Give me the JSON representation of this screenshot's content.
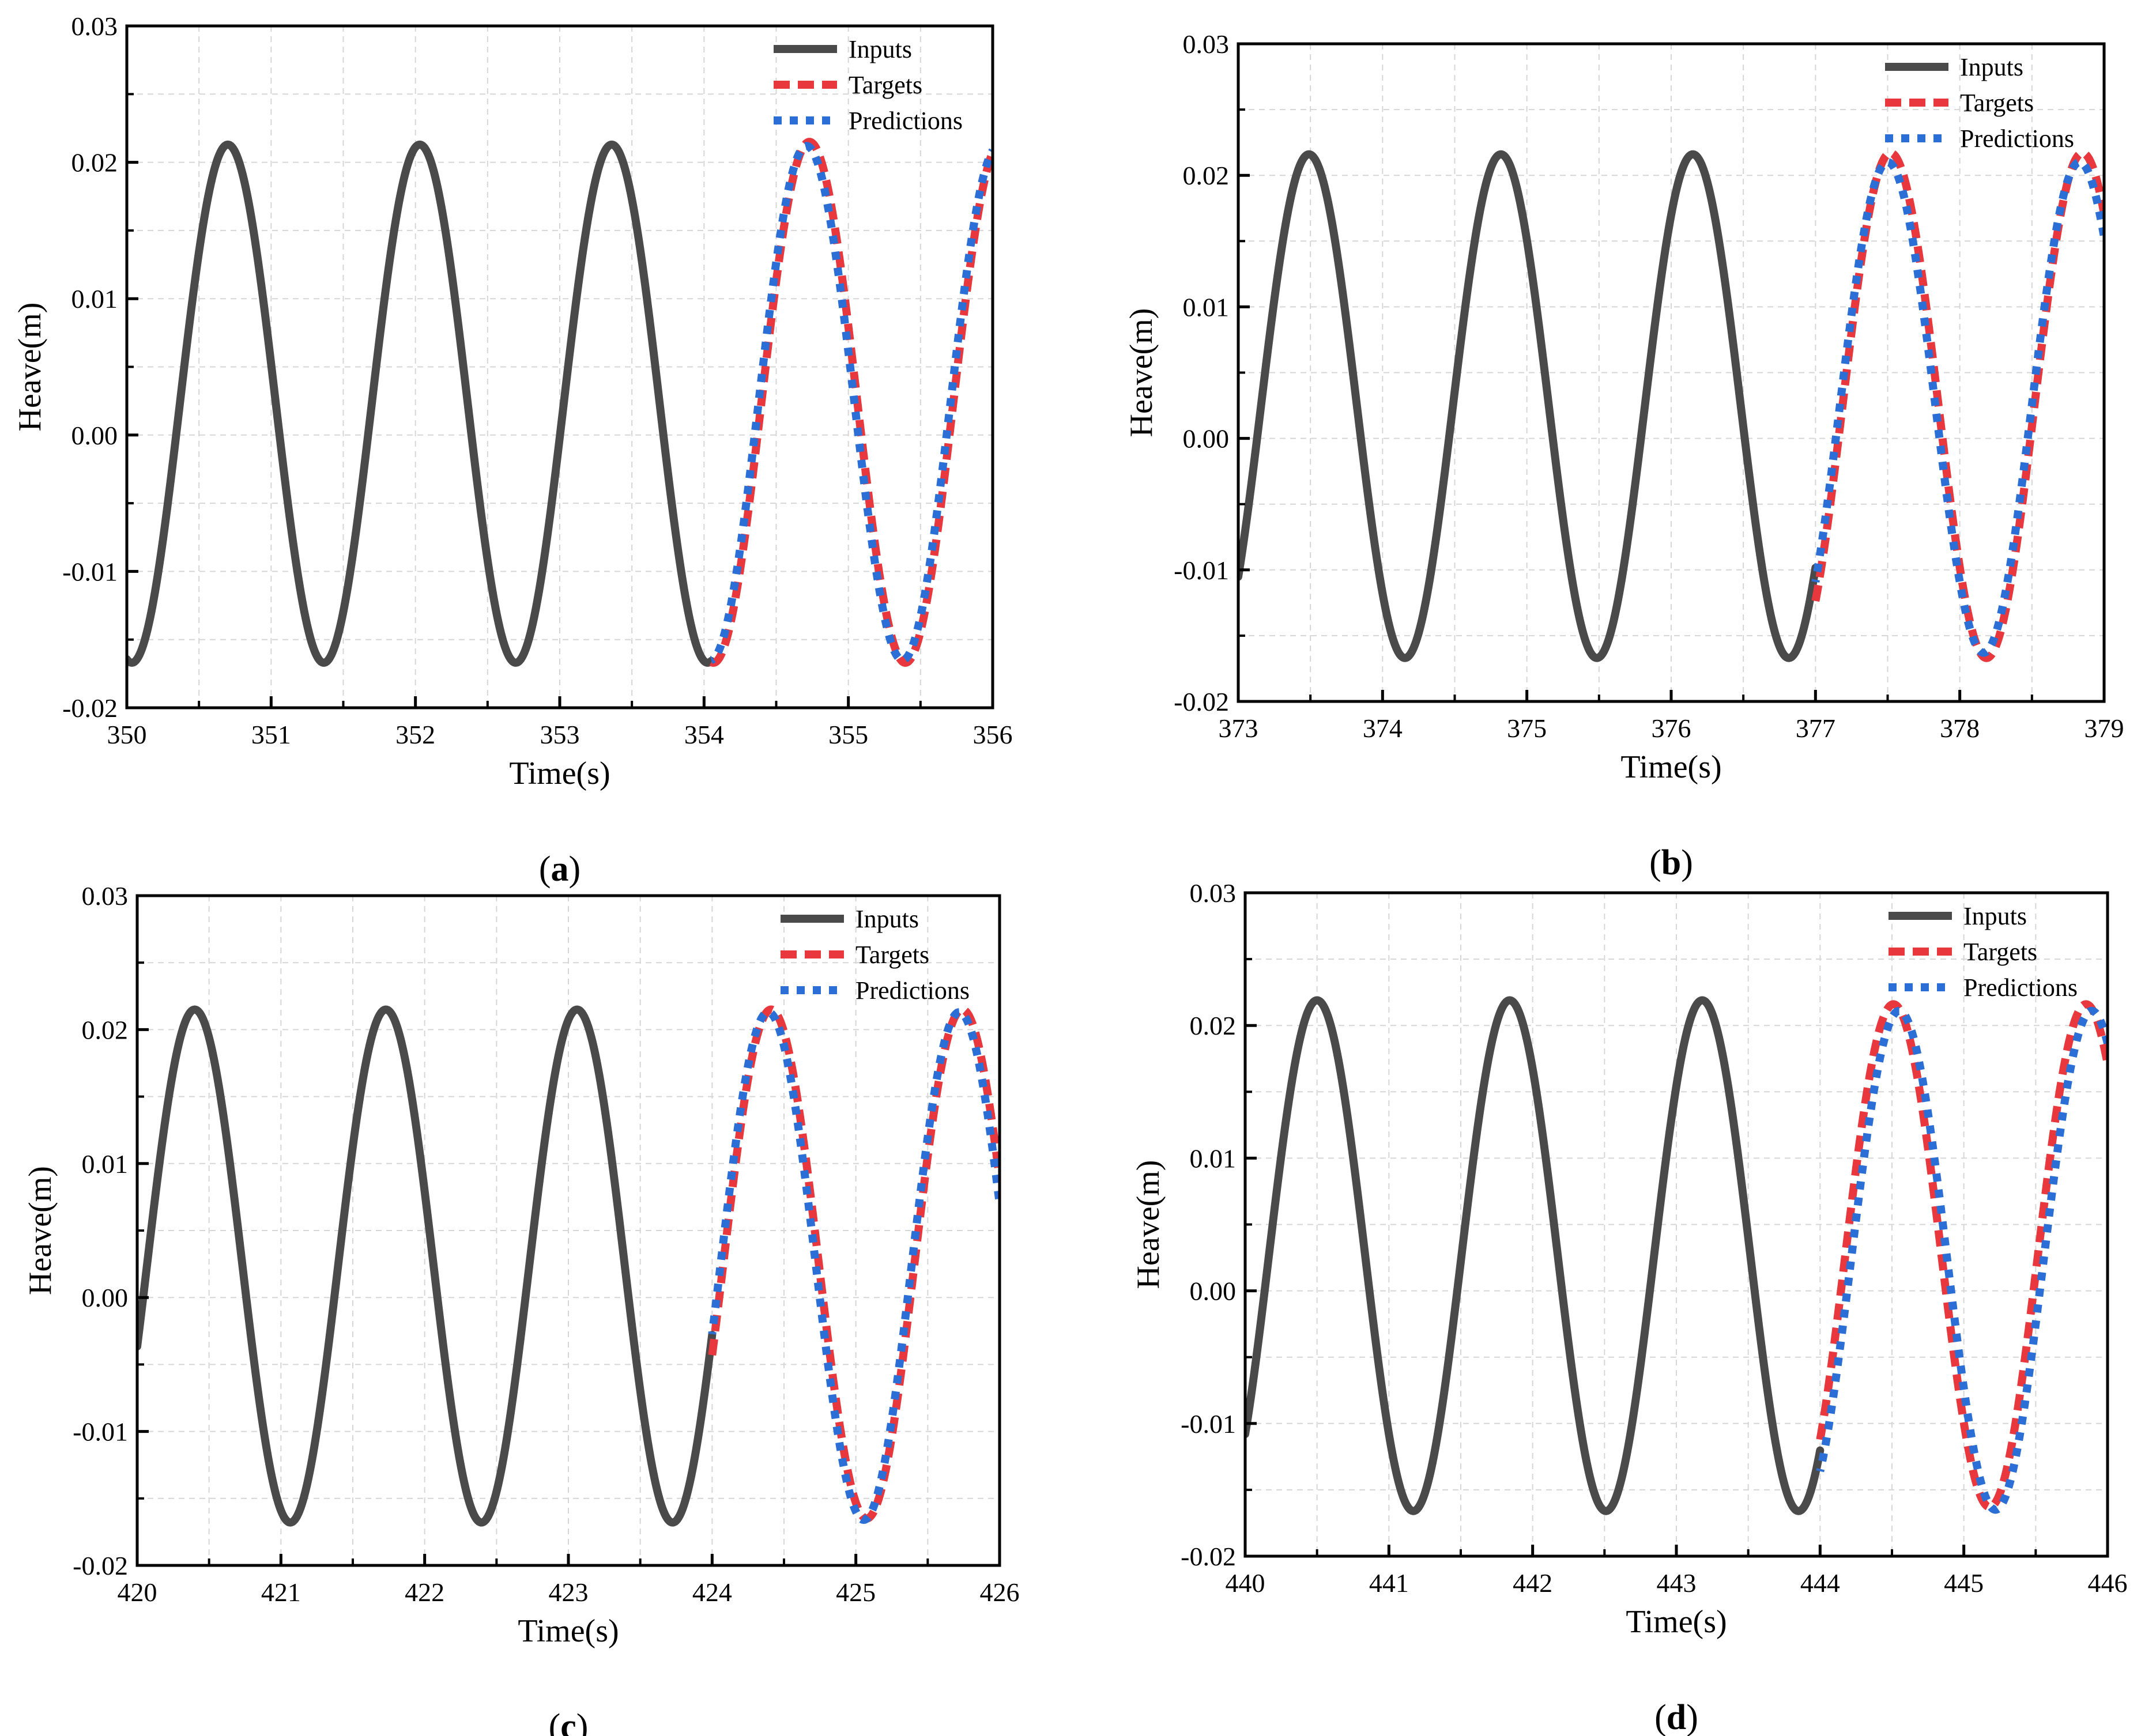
{
  "colors": {
    "inputs": "#4a4a4a",
    "targets": "#e8383d",
    "predictions": "#2b6fd6",
    "grid": "#d6d6d6",
    "axis": "#000000"
  },
  "chart_data": [
    {
      "type": "line",
      "caption_letter": "a",
      "title": "",
      "xlabel": "Time(s)",
      "ylabel": "Heave(m)",
      "xlim": [
        350,
        356
      ],
      "ylim": [
        -0.02,
        0.03
      ],
      "xticks": [
        "350",
        "351",
        "352",
        "353",
        "354",
        "355",
        "356"
      ],
      "yticks": [
        "-0.02",
        "-0.01",
        "0.00",
        "0.01",
        "0.02",
        "0.03"
      ],
      "grid": true,
      "legend_position": "top-right",
      "legend": [
        "Inputs",
        "Targets",
        "Predictions"
      ],
      "series": [
        {
          "name": "Inputs",
          "style": "solid",
          "color": "#4a4a4a",
          "x_range": [
            350,
            354.05
          ],
          "period": 1.33,
          "peak_time": 350.7,
          "max": 0.0213,
          "min": -0.0167
        },
        {
          "name": "Targets",
          "style": "dashed",
          "color": "#e8383d",
          "x_range": [
            354.05,
            356
          ],
          "period": 1.33,
          "peak_time": 354.73,
          "max": 0.0215,
          "min": -0.0167
        },
        {
          "name": "Predictions",
          "style": "dotted",
          "color": "#2b6fd6",
          "x_range": [
            354.05,
            356
          ],
          "period": 1.33,
          "peak_time": 354.71,
          "max": 0.0212,
          "min": -0.0165
        }
      ]
    },
    {
      "type": "line",
      "caption_letter": "b",
      "title": "",
      "xlabel": "Time(s)",
      "ylabel": "Heave(m)",
      "xlim": [
        373,
        379
      ],
      "ylim": [
        -0.02,
        0.03
      ],
      "xticks": [
        "373",
        "374",
        "375",
        "376",
        "377",
        "378",
        "379"
      ],
      "yticks": [
        "-0.02",
        "-0.01",
        "0.00",
        "0.01",
        "0.02",
        "0.03"
      ],
      "grid": true,
      "legend_position": "top-right",
      "legend": [
        "Inputs",
        "Targets",
        "Predictions"
      ],
      "series": [
        {
          "name": "Inputs",
          "style": "solid",
          "color": "#4a4a4a",
          "x_range": [
            373,
            377
          ],
          "period": 1.33,
          "peak_time": 373.49,
          "max": 0.0216,
          "min": -0.0167
        },
        {
          "name": "Targets",
          "style": "dashed",
          "color": "#e8383d",
          "x_range": [
            377,
            379
          ],
          "period": 1.33,
          "peak_time": 377.52,
          "max": 0.0217,
          "min": -0.0167
        },
        {
          "name": "Predictions",
          "style": "dotted",
          "color": "#2b6fd6",
          "x_range": [
            377,
            379
          ],
          "period": 1.33,
          "peak_time": 377.5,
          "max": 0.021,
          "min": -0.0163
        }
      ]
    },
    {
      "type": "line",
      "caption_letter": "c",
      "title": "",
      "xlabel": "Time(s)",
      "ylabel": "Heave(m)",
      "xlim": [
        420,
        426
      ],
      "ylim": [
        -0.02,
        0.03
      ],
      "xticks": [
        "420",
        "421",
        "422",
        "423",
        "424",
        "425",
        "426"
      ],
      "yticks": [
        "-0.02",
        "-0.01",
        "0.00",
        "0.01",
        "0.02",
        "0.03"
      ],
      "grid": true,
      "legend_position": "top-right",
      "legend": [
        "Inputs",
        "Targets",
        "Predictions"
      ],
      "series": [
        {
          "name": "Inputs",
          "style": "solid",
          "color": "#4a4a4a",
          "x_range": [
            420,
            424
          ],
          "period": 1.33,
          "peak_time": 420.4,
          "max": 0.0215,
          "min": -0.0168
        },
        {
          "name": "Targets",
          "style": "dashed",
          "color": "#e8383d",
          "x_range": [
            424,
            426
          ],
          "period": 1.33,
          "peak_time": 424.41,
          "max": 0.0215,
          "min": -0.0165
        },
        {
          "name": "Predictions",
          "style": "dotted",
          "color": "#2b6fd6",
          "x_range": [
            424,
            426
          ],
          "period": 1.33,
          "peak_time": 424.39,
          "max": 0.0213,
          "min": -0.0166
        }
      ]
    },
    {
      "type": "line",
      "caption_letter": "d",
      "title": "",
      "xlabel": "Time(s)",
      "ylabel": "Heave(m)",
      "xlim": [
        440,
        446
      ],
      "ylim": [
        -0.02,
        0.03
      ],
      "xticks": [
        "440",
        "441",
        "442",
        "443",
        "444",
        "445",
        "446"
      ],
      "yticks": [
        "-0.02",
        "-0.01",
        "0.00",
        "0.01",
        "0.02",
        "0.03"
      ],
      "grid": true,
      "legend_position": "top-right",
      "legend": [
        "Inputs",
        "Targets",
        "Predictions"
      ],
      "series": [
        {
          "name": "Inputs",
          "style": "solid",
          "color": "#4a4a4a",
          "x_range": [
            440,
            444
          ],
          "period": 1.34,
          "peak_time": 440.5,
          "max": 0.0219,
          "min": -0.0166
        },
        {
          "name": "Targets",
          "style": "dashed",
          "color": "#e8383d",
          "x_range": [
            444,
            446
          ],
          "period": 1.34,
          "peak_time": 444.51,
          "max": 0.0216,
          "min": -0.0163
        },
        {
          "name": "Predictions",
          "style": "dotted",
          "color": "#2b6fd6",
          "x_range": [
            444,
            446
          ],
          "period": 1.34,
          "peak_time": 444.55,
          "max": 0.0211,
          "min": -0.0165
        }
      ]
    }
  ]
}
